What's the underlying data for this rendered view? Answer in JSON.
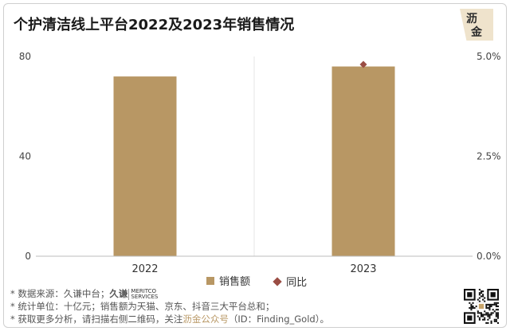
{
  "title": "个护清洁线上平台2022及2023年销售情况",
  "logo": {
    "line1": "沥",
    "line2": "金"
  },
  "chart_data": {
    "type": "bar",
    "categories": [
      "2022",
      "2023"
    ],
    "series": [
      {
        "name": "销售额",
        "type": "bar",
        "axis": "left",
        "values": [
          72,
          76
        ]
      },
      {
        "name": "同比",
        "type": "scatter",
        "axis": "right",
        "values": [
          null,
          0.048
        ]
      }
    ],
    "ylim_left": [
      0,
      80
    ],
    "yticks_left": [
      "0",
      "40",
      "80"
    ],
    "ylim_right": [
      0,
      0.05
    ],
    "yticks_right": [
      "0.0%",
      "2.5%",
      "5.0%"
    ],
    "legend": "bottom-center",
    "colors": {
      "bar": "#b89764",
      "marker": "#9a4d44"
    }
  },
  "notes": {
    "line1": "*  数据来源：久谦中台；",
    "brand_text": "久谦",
    "brand_sub1": "MERITCO",
    "brand_sub2": "SERVICES",
    "line2": "*  统计单位：十亿元；销售额为天猫、京东、抖音三大平台总和；",
    "line3_pre": "*  获取更多分析，请扫描右侧二维码，关注",
    "line3_hl": "沥金公众号",
    "line3_post": "（ID：Finding_Gold）。"
  }
}
